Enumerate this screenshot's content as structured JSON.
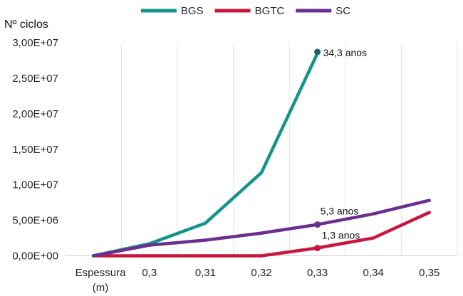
{
  "chart_data": {
    "type": "line",
    "ylabel": "Nº ciclos",
    "xlabel_line1": "Espessura",
    "xlabel_line2": "(m)",
    "x": [
      0.29,
      0.3,
      0.31,
      0.32,
      0.33,
      0.34,
      0.35
    ],
    "x_tick_labels": [
      "0,3",
      "0,31",
      "0,32",
      "0,33",
      "0,34",
      "0,35"
    ],
    "ylim": [
      0,
      30000000
    ],
    "y_tick_labels": [
      "0,00E+00",
      "5,00E+06",
      "1,00E+07",
      "1,50E+07",
      "2,00E+07",
      "2,50E+07",
      "3,00E+07"
    ],
    "grid": "vertical",
    "legend_position": "top",
    "series": [
      {
        "name": "BGS",
        "color": "#14958b",
        "x": [
          0.29,
          0.3,
          0.31,
          0.32,
          0.33
        ],
        "values": [
          0,
          1700000,
          4600000,
          11700000,
          28500000
        ]
      },
      {
        "name": "BGTC",
        "color": "#c8173f",
        "x": [
          0.29,
          0.3,
          0.31,
          0.32,
          0.33,
          0.34,
          0.35
        ],
        "values": [
          0,
          0,
          0,
          0,
          1100000,
          2500000,
          6100000
        ]
      },
      {
        "name": "SC",
        "color": "#6a2f8f",
        "x": [
          0.29,
          0.3,
          0.31,
          0.32,
          0.33,
          0.34,
          0.35
        ],
        "values": [
          0,
          1500000,
          2200000,
          3200000,
          4400000,
          5900000,
          7800000
        ]
      }
    ],
    "annotations": [
      {
        "series": "BGS",
        "x": 0.33,
        "value": 28700000,
        "text": "34,3 anos",
        "marker_color": "#1f5f70"
      },
      {
        "series": "SC",
        "x": 0.33,
        "value": 4400000,
        "text": "5,3 anos",
        "marker_color": "#6a2f8f"
      },
      {
        "series": "BGTC",
        "x": 0.33,
        "value": 1100000,
        "text": "1,3 anos",
        "marker_color": "#c8173f"
      }
    ]
  }
}
